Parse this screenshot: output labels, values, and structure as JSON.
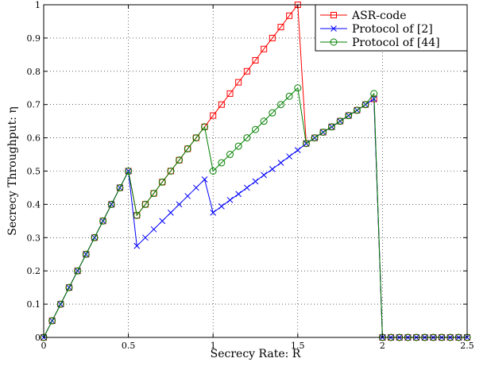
{
  "chart_data": {
    "type": "line",
    "xlabel": "Secrecy Rate: R",
    "ylabel": "Secrecy Throughput: η",
    "xlim": [
      0,
      2.5
    ],
    "ylim": [
      0,
      1
    ],
    "xticks": [
      "0",
      "0.5",
      "1",
      "1.5",
      "2",
      "2.5"
    ],
    "xtick_values": [
      0,
      0.5,
      1,
      1.5,
      2,
      2.5
    ],
    "yticks": [
      "0",
      "0.1",
      "0.2",
      "0.3",
      "0.4",
      "0.5",
      "0.6",
      "0.7",
      "0.8",
      "0.9",
      "1"
    ],
    "ytick_values": [
      0,
      0.1,
      0.2,
      0.3,
      0.4,
      0.5,
      0.6,
      0.7,
      0.8,
      0.9,
      1
    ],
    "grid": true,
    "legend_position": "top-right",
    "series": [
      {
        "name": "ASR-code",
        "color": "#ff0000",
        "marker": "square",
        "x": [
          0,
          0.05,
          0.1,
          0.15,
          0.2,
          0.25,
          0.3,
          0.35,
          0.4,
          0.45,
          0.5,
          0.55,
          0.6,
          0.65,
          0.7,
          0.75,
          0.8,
          0.85,
          0.9,
          0.95,
          1,
          1.05,
          1.1,
          1.15,
          1.2,
          1.25,
          1.3,
          1.35,
          1.4,
          1.45,
          1.5,
          1.55,
          1.6,
          1.65,
          1.7,
          1.75,
          1.8,
          1.85,
          1.9,
          1.95,
          2,
          2.05,
          2.1,
          2.15,
          2.2,
          2.25,
          2.3,
          2.35,
          2.4,
          2.45,
          2.5
        ],
        "y": [
          0,
          0.05,
          0.1,
          0.15,
          0.2,
          0.25,
          0.3,
          0.35,
          0.4,
          0.45,
          0.5,
          0.367,
          0.4,
          0.433,
          0.467,
          0.5,
          0.533,
          0.567,
          0.6,
          0.633,
          0.667,
          0.7,
          0.733,
          0.767,
          0.8,
          0.833,
          0.867,
          0.9,
          0.933,
          0.967,
          1.0,
          0.583,
          0.6,
          0.617,
          0.633,
          0.65,
          0.667,
          0.683,
          0.7,
          0.717,
          0,
          0,
          0,
          0,
          0,
          0,
          0,
          0,
          0,
          0,
          0
        ]
      },
      {
        "name": "Protocol of [2]",
        "color": "#0000ff",
        "marker": "x",
        "x": [
          0,
          0.05,
          0.1,
          0.15,
          0.2,
          0.25,
          0.3,
          0.35,
          0.4,
          0.45,
          0.5,
          0.55,
          0.6,
          0.65,
          0.7,
          0.75,
          0.8,
          0.85,
          0.9,
          0.95,
          1,
          1.05,
          1.1,
          1.15,
          1.2,
          1.25,
          1.3,
          1.35,
          1.4,
          1.45,
          1.5,
          1.55,
          1.6,
          1.65,
          1.7,
          1.75,
          1.8,
          1.85,
          1.9,
          1.95,
          2,
          2.05,
          2.1,
          2.15,
          2.2,
          2.25,
          2.3,
          2.35,
          2.4,
          2.45,
          2.5
        ],
        "y": [
          0,
          0.05,
          0.1,
          0.15,
          0.2,
          0.25,
          0.3,
          0.35,
          0.4,
          0.45,
          0.5,
          0.275,
          0.3,
          0.325,
          0.35,
          0.375,
          0.4,
          0.425,
          0.45,
          0.475,
          0.375,
          0.394,
          0.413,
          0.431,
          0.45,
          0.469,
          0.488,
          0.506,
          0.525,
          0.544,
          0.563,
          0.583,
          0.6,
          0.617,
          0.633,
          0.65,
          0.667,
          0.683,
          0.7,
          0.717,
          0,
          0,
          0,
          0,
          0,
          0,
          0,
          0,
          0,
          0,
          0
        ]
      },
      {
        "name": "Protocol of [44]",
        "color": "#008000",
        "marker": "circle",
        "x": [
          0,
          0.05,
          0.1,
          0.15,
          0.2,
          0.25,
          0.3,
          0.35,
          0.4,
          0.45,
          0.5,
          0.55,
          0.6,
          0.65,
          0.7,
          0.75,
          0.8,
          0.85,
          0.9,
          0.95,
          1,
          1.05,
          1.1,
          1.15,
          1.2,
          1.25,
          1.3,
          1.35,
          1.4,
          1.45,
          1.5,
          1.55,
          1.6,
          1.65,
          1.7,
          1.75,
          1.8,
          1.85,
          1.9,
          1.95,
          2,
          2.05,
          2.1,
          2.15,
          2.2,
          2.25,
          2.3,
          2.35,
          2.4,
          2.45,
          2.5
        ],
        "y": [
          0,
          0.05,
          0.1,
          0.15,
          0.2,
          0.25,
          0.3,
          0.35,
          0.4,
          0.45,
          0.5,
          0.367,
          0.4,
          0.433,
          0.467,
          0.5,
          0.533,
          0.567,
          0.6,
          0.633,
          0.5,
          0.525,
          0.55,
          0.575,
          0.6,
          0.625,
          0.65,
          0.675,
          0.7,
          0.725,
          0.75,
          0.583,
          0.6,
          0.617,
          0.633,
          0.65,
          0.667,
          0.683,
          0.7,
          0.733,
          0,
          0,
          0,
          0,
          0,
          0,
          0,
          0,
          0,
          0,
          0
        ]
      }
    ]
  }
}
